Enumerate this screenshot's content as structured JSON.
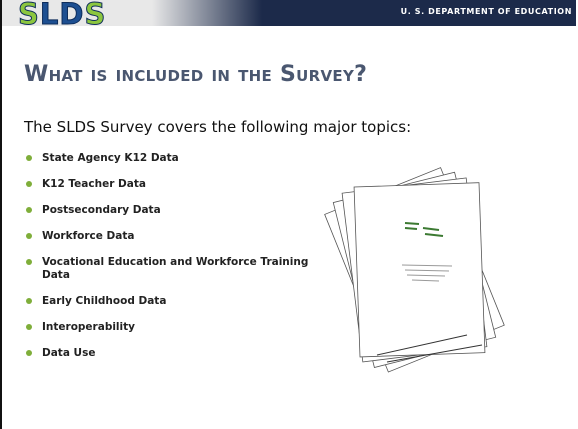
{
  "header": {
    "logo": [
      "S",
      "L",
      "D",
      "S"
    ],
    "department": "U. S. DEPARTMENT OF EDUCATION"
  },
  "title": "What is included in the Survey?",
  "intro": "The SLDS Survey covers the following major topics:",
  "bullets": [
    "State Agency K12 Data",
    "K12 Teacher Data",
    "Postsecondary Data",
    "Workforce Data",
    "Vocational Education and Workforce Training Data",
    "Early Childhood Data",
    "Interoperability",
    "Data Use"
  ]
}
